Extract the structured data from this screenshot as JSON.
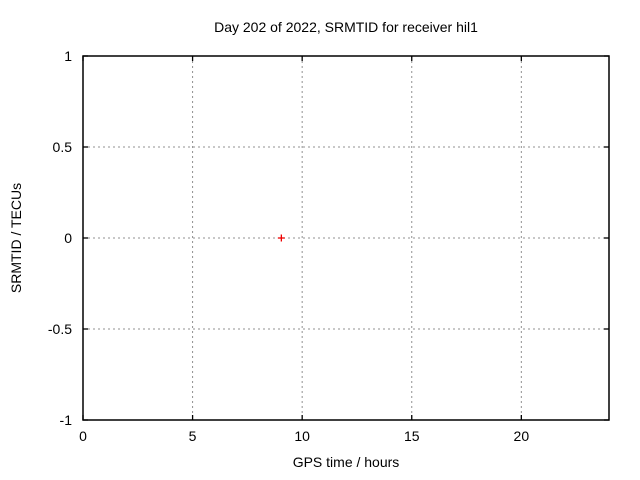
{
  "chart_data": {
    "type": "scatter",
    "title": "Day 202 of 2022, SRMTID for receiver hil1",
    "xlabel": "GPS time / hours",
    "ylabel": "SRMTID / TECUs",
    "xlim": [
      0,
      24
    ],
    "ylim": [
      -1,
      1
    ],
    "xticks": [
      0,
      5,
      10,
      15,
      20
    ],
    "yticks": [
      -1,
      -0.5,
      0,
      0.5,
      1
    ],
    "grid": true,
    "grid_style": "dotted",
    "legend": "none",
    "series": [
      {
        "name": "SRMTID",
        "marker": "plus",
        "color": "#ee0000",
        "points": [
          {
            "x": 9.05,
            "y": 0.0
          }
        ]
      }
    ],
    "colors": {
      "background": "#ffffff",
      "border": "#000000",
      "tick": "#000000",
      "grid": "#909090",
      "text": "#000000"
    }
  }
}
